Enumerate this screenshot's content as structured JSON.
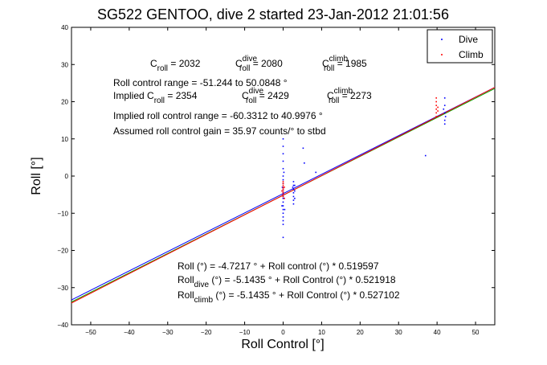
{
  "chart_data": {
    "type": "scatter",
    "title": "SG522 GENTOO, dive 2 started 23-Jan-2012 21:01:56",
    "xlabel": "Roll Control [°]",
    "ylabel": "Roll [°]",
    "xlim": [
      -55,
      55
    ],
    "ylim": [
      -40,
      40
    ],
    "xticks": [
      -50,
      -40,
      -30,
      -20,
      -10,
      0,
      10,
      20,
      30,
      40,
      50
    ],
    "yticks": [
      -40,
      -30,
      -20,
      -10,
      0,
      10,
      20,
      30,
      40
    ],
    "grid": false,
    "legend_position": "top-right",
    "legend": [
      {
        "label": "Dive",
        "color": "#0000ff",
        "marker": "dot"
      },
      {
        "label": "Climb",
        "color": "#ff0000",
        "marker": "dot"
      }
    ],
    "series": [
      {
        "name": "Dive",
        "color": "#0000ff",
        "points": [
          [
            0,
            -16.5
          ],
          [
            0,
            -13
          ],
          [
            0,
            -12
          ],
          [
            0,
            -11
          ],
          [
            0,
            -10
          ],
          [
            0,
            -9
          ],
          [
            0,
            -8
          ],
          [
            0,
            -7
          ],
          [
            0,
            -6
          ],
          [
            0,
            -5.5
          ],
          [
            0,
            -5
          ],
          [
            0,
            -4.5
          ],
          [
            0,
            -4
          ],
          [
            0,
            -3.5
          ],
          [
            0,
            -3
          ],
          [
            0,
            -2
          ],
          [
            0,
            -1
          ],
          [
            0,
            0
          ],
          [
            0,
            2
          ],
          [
            0,
            4
          ],
          [
            0,
            6
          ],
          [
            0,
            8
          ],
          [
            0,
            10
          ],
          [
            -0.3,
            -8
          ],
          [
            0.3,
            -6
          ],
          [
            -0.2,
            -3
          ],
          [
            0.4,
            -9
          ],
          [
            0.2,
            1
          ],
          [
            2.7,
            -7.5
          ],
          [
            2.7,
            -6.5
          ],
          [
            2.7,
            -5.5
          ],
          [
            2.7,
            -4.5
          ],
          [
            2.7,
            -3.5
          ],
          [
            2.7,
            -2.5
          ],
          [
            2.7,
            -1.5
          ],
          [
            3,
            -6
          ],
          [
            3,
            -4
          ],
          [
            3,
            -2.5
          ],
          [
            2.5,
            -3
          ],
          [
            5.5,
            3.5
          ],
          [
            5.2,
            7.5
          ],
          [
            8.5,
            1
          ],
          [
            37,
            5.5
          ],
          [
            42,
            21
          ],
          [
            42,
            19
          ],
          [
            42,
            17
          ],
          [
            42,
            15
          ],
          [
            42,
            14
          ],
          [
            41.7,
            18
          ],
          [
            42.2,
            16
          ]
        ]
      },
      {
        "name": "Climb",
        "color": "#ff0000",
        "points": [
          [
            0,
            -5.5
          ],
          [
            0,
            -5
          ],
          [
            0,
            -4.5
          ],
          [
            0,
            -4
          ],
          [
            0,
            -3.5
          ],
          [
            0,
            -3
          ],
          [
            0,
            -2.5
          ],
          [
            0,
            -2
          ],
          [
            0,
            -1.5
          ],
          [
            0.3,
            -6
          ],
          [
            -0.3,
            -4
          ],
          [
            0.3,
            -3
          ],
          [
            39.8,
            21
          ],
          [
            39.8,
            20
          ],
          [
            39.8,
            19
          ],
          [
            39.8,
            18
          ],
          [
            39.8,
            17
          ],
          [
            39.8,
            16
          ],
          [
            40.2,
            18.5
          ],
          [
            40.2,
            17.5
          ]
        ]
      }
    ],
    "fit_lines": [
      {
        "color": "#0000ff",
        "intercept": -4.7217,
        "slope": 0.519597
      },
      {
        "color": "#00aa00",
        "intercept": -5.1435,
        "slope": 0.521918
      },
      {
        "color": "#ff0000",
        "intercept": -5.1435,
        "slope": 0.527102
      }
    ],
    "annotations": {
      "c_roll_line": {
        "c_label": "C",
        "c_sub": "roll",
        "c_value": " = 2032",
        "dive_label": "C",
        "dive_sup": "dive",
        "dive_sub": "roll",
        "dive_value": " = 2080",
        "climb_label": "C",
        "climb_sup": "climb",
        "climb_sub": "roll",
        "climb_value": " = 1985"
      },
      "range_line": "Roll control range = -51.244 to 50.0848 °",
      "implied_line": {
        "prefix": "Implied C",
        "c_sub": "roll",
        "c_value": " = 2354",
        "dive_label": "C",
        "dive_sup": "dive",
        "dive_sub": "roll",
        "dive_value": " = 2429",
        "climb_label": "C",
        "climb_sup": "climb",
        "climb_sub": "roll",
        "climb_value": " = 2273"
      },
      "implied_range_line": "Implied roll control range = -60.3312 to 40.9976 °",
      "gain_line": "Assumed roll control gain = 35.97 counts/° to stbd",
      "eq1": "Roll (°) = -4.7217 ° + Roll control (°) * 0.519597",
      "eq2_prefix": "Roll",
      "eq2_sub": "dive",
      "eq2_rest": " (°) = -5.1435 ° + Roll Control (°) * 0.521918",
      "eq3_prefix": "Roll",
      "eq3_sub": "climb",
      "eq3_rest": " (°) = -5.1435 ° + Roll Control (°) * 0.527102"
    }
  }
}
